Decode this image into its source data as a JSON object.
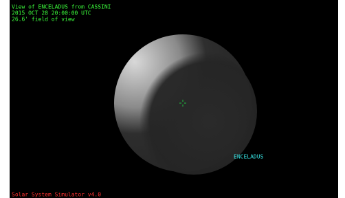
{
  "header": {
    "lines": [
      "View of ENCELADUS from CASSINI",
      "2015 OCT 28 20:00:00 UTC",
      "26.6' field of view"
    ]
  },
  "target_label": "ENCELADUS",
  "footer": "Solar System Simulator v4.0"
}
